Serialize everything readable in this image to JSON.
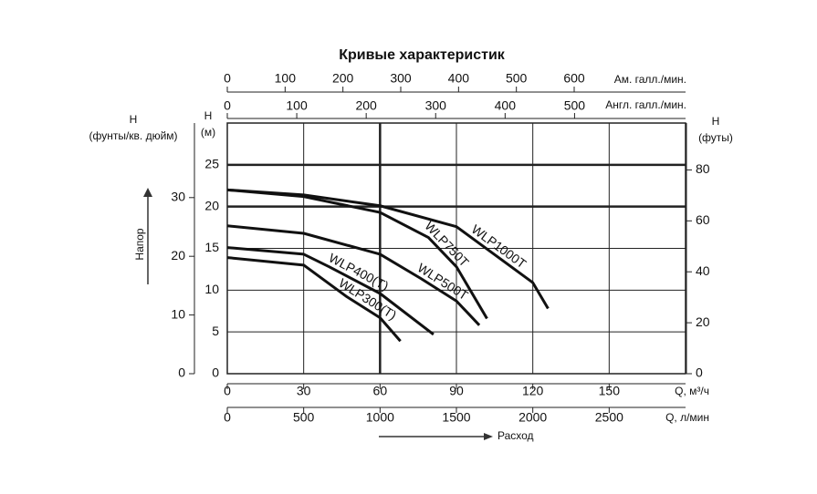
{
  "chart_data": {
    "type": "line",
    "title": "Кривые характеристик",
    "x_label": "Q, м³/ч",
    "y_label": "H",
    "y_unit": "(м)",
    "xlim": [
      0,
      180
    ],
    "xticks": [
      0,
      30,
      60,
      90,
      120,
      150
    ],
    "ylim": [
      0,
      30
    ],
    "yticks": [
      0,
      5,
      10,
      15,
      20,
      25
    ],
    "grid": true,
    "head_label": "Напор",
    "flow_label": "Расход",
    "series": [
      {
        "name": "WLP1000T",
        "color": "#111111",
        "x": [
          0,
          30,
          60,
          90,
          120,
          126
        ],
        "values": [
          22,
          21.4,
          20.1,
          17.6,
          10.9,
          7.8
        ]
      },
      {
        "name": "WLP750T",
        "color": "#111111",
        "x": [
          0,
          30,
          60,
          79,
          90,
          102
        ],
        "values": [
          22,
          21.2,
          19.3,
          16.3,
          12.8,
          6.6
        ]
      },
      {
        "name": "WLP500T",
        "color": "#111111",
        "x": [
          0,
          30,
          60,
          76,
          90,
          99
        ],
        "values": [
          17.7,
          16.8,
          14.3,
          11.4,
          8.7,
          5.8
        ]
      },
      {
        "name": "WLP400(T)",
        "color": "#111111",
        "x": [
          0,
          30,
          40,
          60,
          81
        ],
        "values": [
          15.1,
          14.3,
          12.8,
          9.6,
          4.7
        ]
      },
      {
        "name": "WLP300(T)",
        "color": "#111111",
        "x": [
          0,
          30,
          47,
          60,
          68
        ],
        "values": [
          13.9,
          13,
          9.2,
          6.7,
          3.9
        ]
      }
    ],
    "psi_axis": {
      "label": "H",
      "unit": "(фунты/кв. дюйм)",
      "lim": [
        0,
        42.7
      ],
      "ticks": [
        0,
        10,
        20,
        30
      ]
    },
    "feet_axis": {
      "label": "H",
      "unit": "(футы)",
      "lim": [
        0,
        98.4
      ],
      "ticks": [
        0,
        20,
        40,
        60,
        80
      ]
    },
    "us_gpm_axis": {
      "label": "Ам. галл./мин.",
      "lim": [
        0,
        792.6
      ],
      "ticks": [
        0,
        100,
        200,
        300,
        400,
        500,
        600
      ]
    },
    "uk_gpm_axis": {
      "label": "Англ. галл./мин.",
      "lim": [
        0,
        659.8
      ],
      "ticks": [
        0,
        100,
        200,
        300,
        400,
        500
      ]
    },
    "lpm_axis": {
      "label": "Q, л/мин",
      "lim": [
        0,
        3000
      ],
      "ticks": [
        0,
        500,
        1000,
        1500,
        2000,
        2500
      ]
    }
  }
}
